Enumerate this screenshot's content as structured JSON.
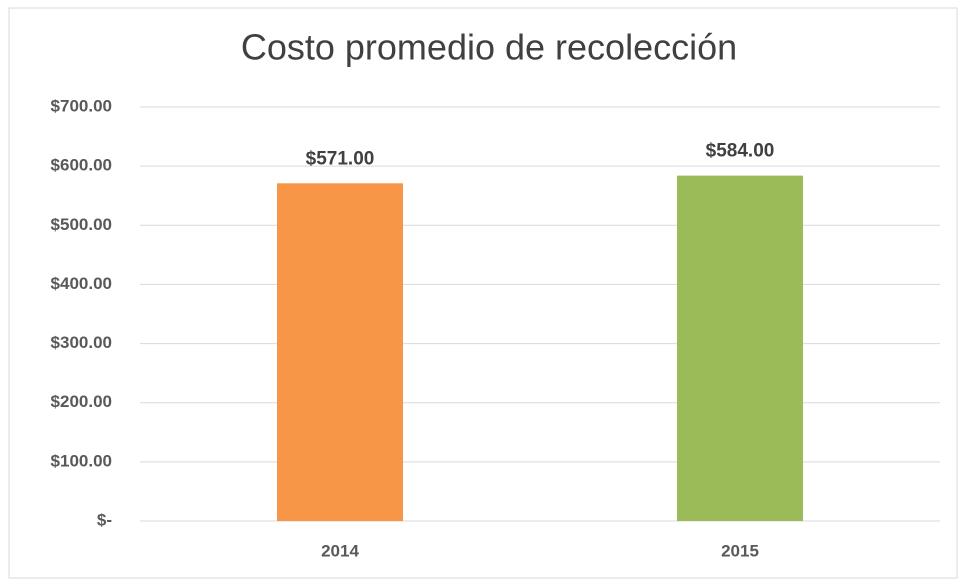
{
  "chart_data": {
    "type": "bar",
    "title": "Costo promedio de recolección",
    "categories": [
      "2014",
      "2015"
    ],
    "values": [
      571,
      584
    ],
    "value_labels": [
      "$571.00",
      "$584.00"
    ],
    "colors": [
      "#f79646",
      "#9bbb59"
    ],
    "ylim": [
      0,
      700
    ],
    "yticks": [
      {
        "value": 0,
        "label": "$-"
      },
      {
        "value": 100,
        "label": "$100.00"
      },
      {
        "value": 200,
        "label": "$200.00"
      },
      {
        "value": 300,
        "label": "$300.00"
      },
      {
        "value": 400,
        "label": "$400.00"
      },
      {
        "value": 500,
        "label": "$500.00"
      },
      {
        "value": 600,
        "label": "$600.00"
      },
      {
        "value": 700,
        "label": "$700.00"
      }
    ],
    "grid": true
  }
}
